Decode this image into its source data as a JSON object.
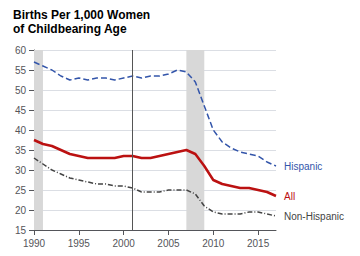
{
  "chart_data": {
    "type": "line",
    "title": "Births Per 1,000 Women",
    "subtitle": "of Childbearing Age",
    "x": [
      1990,
      1991,
      1992,
      1993,
      1994,
      1995,
      1996,
      1997,
      1998,
      1999,
      2000,
      2001,
      2002,
      2003,
      2004,
      2005,
      2006,
      2007,
      2008,
      2009,
      2010,
      2011,
      2012,
      2013,
      2014,
      2015,
      2016,
      2017
    ],
    "series": [
      {
        "name": "Hispanic",
        "color": "#3355aa",
        "line_style": "dashed",
        "values": [
          57.0,
          56.0,
          55.0,
          53.5,
          52.5,
          53.0,
          52.5,
          53.0,
          53.0,
          52.5,
          53.0,
          53.5,
          53.0,
          53.5,
          53.5,
          54.0,
          55.0,
          54.5,
          52.0,
          46.0,
          40.0,
          37.0,
          35.5,
          34.5,
          34.0,
          33.5,
          32.0,
          31.0
        ]
      },
      {
        "name": "All",
        "color": "#bb1111",
        "line_style": "solid",
        "values": [
          37.5,
          36.5,
          36.0,
          35.0,
          34.0,
          33.5,
          33.0,
          33.0,
          33.0,
          33.0,
          33.5,
          33.5,
          33.0,
          33.0,
          33.5,
          34.0,
          34.5,
          35.0,
          34.0,
          31.0,
          27.5,
          26.5,
          26.0,
          25.5,
          25.5,
          25.0,
          24.5,
          23.5
        ]
      },
      {
        "name": "Non-Hispanic",
        "color": "#444444",
        "line_style": "dashdot",
        "values": [
          33.0,
          31.5,
          30.0,
          29.0,
          28.0,
          27.5,
          27.0,
          26.5,
          26.5,
          26.0,
          26.0,
          25.5,
          24.5,
          24.5,
          24.5,
          25.0,
          25.0,
          25.0,
          24.0,
          21.0,
          19.5,
          19.0,
          19.0,
          19.0,
          19.5,
          19.5,
          19.0,
          18.5
        ]
      }
    ],
    "xlim": [
      1990,
      2017
    ],
    "xticks": [
      1990,
      1995,
      2000,
      2005,
      2010,
      2015
    ],
    "ylim": [
      15,
      60
    ],
    "yticks": [
      15,
      20,
      25,
      30,
      35,
      40,
      45,
      50,
      55,
      60
    ],
    "grid": true,
    "shaded_ranges": [
      {
        "from": 1990,
        "to": 1991,
        "color": "#d8d8d8"
      },
      {
        "from": 2007,
        "to": 2009,
        "color": "#d8d8d8"
      }
    ],
    "vertical_line": {
      "x": 2001,
      "color": "#555555"
    }
  }
}
